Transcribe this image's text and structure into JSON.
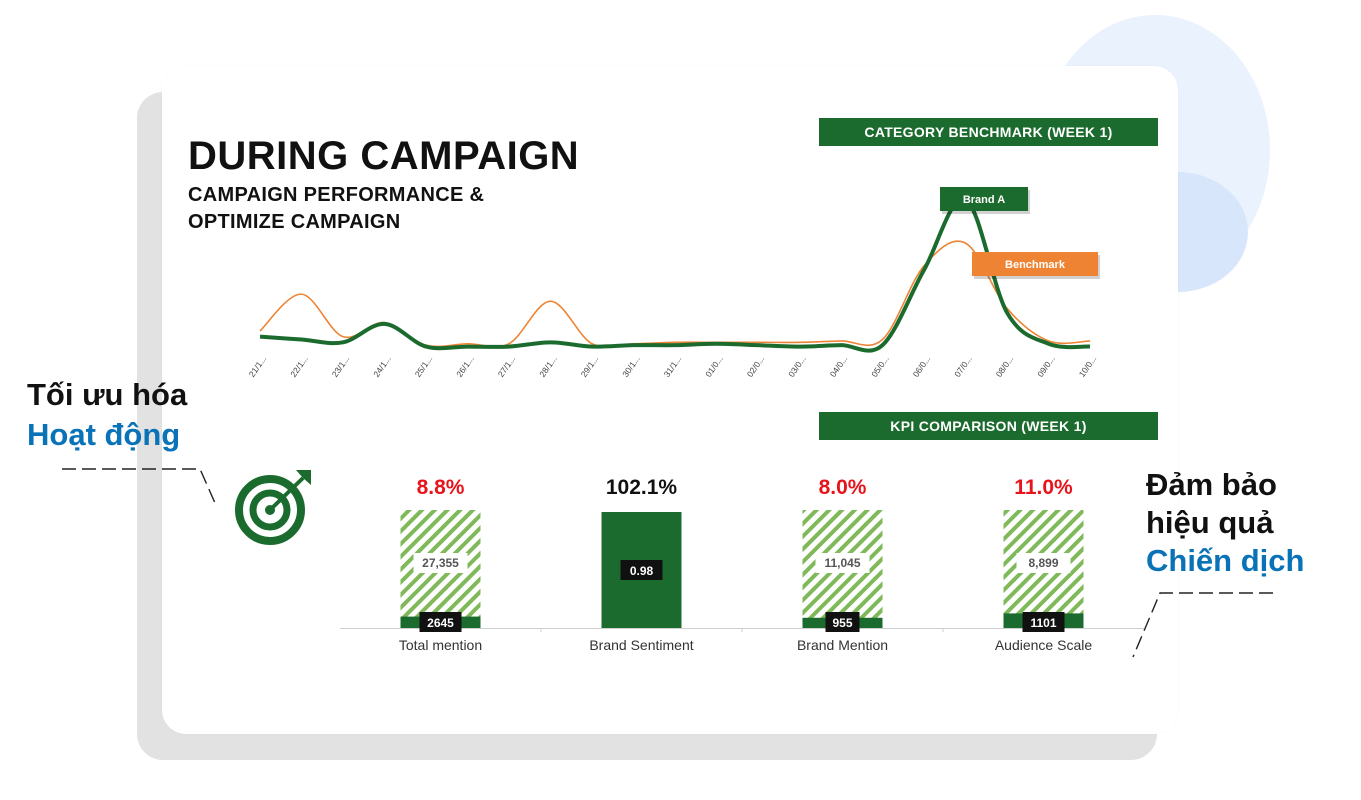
{
  "title": "DURING CAMPAIGN",
  "subtitle_line1": "CAMPAIGN PERFORMANCE &",
  "subtitle_line2": "OPTIMIZE CAMPAIGN",
  "left_callout": {
    "line1": "Tối ưu hóa",
    "line2": "Hoạt động"
  },
  "right_callout": {
    "line1": "Đảm bảo",
    "line2": "hiệu quả",
    "line3": "Chiến dịch"
  },
  "colors": {
    "brand": "#1c6b2e",
    "benchmark": "#ee8433",
    "negative": "#e8141c",
    "highlight_blue": "#0a73b8"
  },
  "icon": "target-arrow-icon",
  "chart_data": [
    {
      "type": "line",
      "title": "CATEGORY BENCHMARK (WEEK 1)",
      "x": [
        "21/1...",
        "22/1...",
        "23/1...",
        "24/1...",
        "25/1...",
        "26/1...",
        "27/1...",
        "28/1...",
        "29/1...",
        "30/1...",
        "31/1...",
        "01/0...",
        "02/0...",
        "03/0...",
        "04/0...",
        "05/0...",
        "06/0...",
        "07/0...",
        "08/0...",
        "09/0...",
        "10/0..."
      ],
      "series": [
        {
          "name": "Brand A",
          "values": [
            8,
            6,
            4,
            17,
            1,
            1,
            1,
            4,
            1,
            2,
            2,
            3,
            2,
            1,
            2,
            2,
            55,
            105,
            25,
            3,
            1
          ]
        },
        {
          "name": "Benchmark",
          "values": [
            12,
            38,
            8,
            18,
            2,
            3,
            3,
            33,
            3,
            3,
            4,
            4,
            4,
            4,
            5,
            6,
            58,
            74,
            28,
            5,
            5
          ]
        }
      ],
      "ylim": [
        0,
        115
      ],
      "grid": false
    },
    {
      "type": "bar",
      "title": "KPI COMPARISON (WEEK 1)",
      "categories": [
        "Total mention",
        "Brand Sentiment",
        "Brand Mention",
        "Audience Scale"
      ],
      "series": [
        {
          "values": [
            2645,
            0.98,
            955,
            1101
          ]
        },
        {
          "values": [
            27355,
            null,
            11045,
            8899
          ]
        }
      ],
      "labels": [
        "27,355",
        "2645",
        "0.98",
        "11,045",
        "955",
        "8,899",
        "1101"
      ],
      "percents": [
        {
          "text": "8.8%",
          "value": 8.8,
          "color": "#e8141c"
        },
        {
          "text": "102.1%",
          "value": 102.1,
          "color": "#111111"
        },
        {
          "text": "8.0%",
          "value": 8.0,
          "color": "#e8141c"
        },
        {
          "text": "11.0%",
          "value": 11.0,
          "color": "#e8141c"
        }
      ]
    }
  ]
}
